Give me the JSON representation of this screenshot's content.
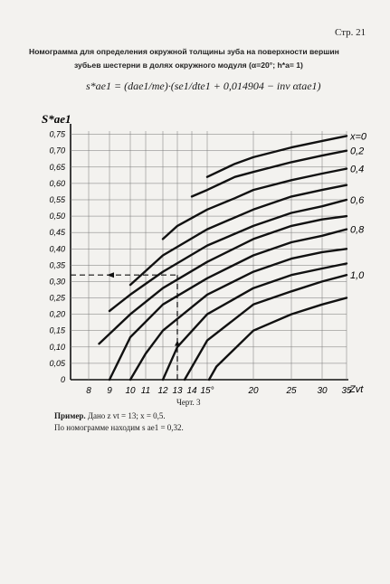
{
  "header": {
    "page_number": "Стр. 21"
  },
  "title": {
    "line1": "Номограмма для определения окружной толщины зуба на поверхности вершин",
    "line2": "зубьев шестерни в долях окружного модуля (α=20°; h*a= 1)"
  },
  "formula": "s*ae1 = (dae1/me)·(se1/dte1 + 0,014904 − inv αtae1)",
  "chart_data": {
    "type": "line",
    "title": "",
    "ylabel": "S*ae1",
    "xlabel": "Zvt",
    "x_ticks": [
      8,
      9,
      10,
      11,
      12,
      13,
      14,
      15,
      20,
      25,
      30,
      35
    ],
    "x_tick_labels": [
      "8",
      "9",
      "10",
      "11",
      "12",
      "13",
      "14",
      "15°",
      "20",
      "25",
      "30",
      "35"
    ],
    "y_ticks": [
      0,
      0.05,
      0.1,
      0.15,
      0.2,
      0.25,
      0.3,
      0.35,
      0.4,
      0.45,
      0.5,
      0.55,
      0.6,
      0.65,
      0.7,
      0.75
    ],
    "y_tick_labels": [
      "0",
      "0,05",
      "0,10",
      "0,15",
      "0,20",
      "0,25",
      "0,30",
      "0,35",
      "0,40",
      "0,45",
      "0,50",
      "0,55",
      "0,60",
      "0,65",
      "0,70",
      "0,75"
    ],
    "xlim": [
      7.5,
      36
    ],
    "ylim": [
      0,
      0.76
    ],
    "axis": "reciprocal",
    "grid": true,
    "series": [
      {
        "name": "x=0",
        "points": [
          [
            15,
            0.62
          ],
          [
            18,
            0.66
          ],
          [
            20,
            0.68
          ],
          [
            25,
            0.71
          ],
          [
            30,
            0.73
          ],
          [
            35,
            0.745
          ]
        ]
      },
      {
        "name": "0,2",
        "points": [
          [
            14,
            0.56
          ],
          [
            15,
            0.58
          ],
          [
            18,
            0.62
          ],
          [
            20,
            0.635
          ],
          [
            25,
            0.665
          ],
          [
            30,
            0.685
          ],
          [
            35,
            0.7
          ]
        ]
      },
      {
        "name": "0,4",
        "points": [
          [
            12,
            0.43
          ],
          [
            13,
            0.47
          ],
          [
            15,
            0.52
          ],
          [
            18,
            0.555
          ],
          [
            20,
            0.58
          ],
          [
            25,
            0.61
          ],
          [
            30,
            0.63
          ],
          [
            35,
            0.645
          ]
        ]
      },
      {
        "name": "",
        "points": [
          [
            10,
            0.29
          ],
          [
            12,
            0.38
          ],
          [
            15,
            0.46
          ],
          [
            20,
            0.52
          ],
          [
            25,
            0.56
          ],
          [
            30,
            0.58
          ],
          [
            35,
            0.595
          ]
        ]
      },
      {
        "name": "0,6",
        "points": [
          [
            9,
            0.21
          ],
          [
            10,
            0.26
          ],
          [
            12,
            0.33
          ],
          [
            15,
            0.41
          ],
          [
            20,
            0.47
          ],
          [
            25,
            0.51
          ],
          [
            30,
            0.53
          ],
          [
            35,
            0.55
          ]
        ]
      },
      {
        "name": "",
        "points": [
          [
            8.5,
            0.11
          ],
          [
            10,
            0.2
          ],
          [
            12,
            0.28
          ],
          [
            15,
            0.36
          ],
          [
            20,
            0.43
          ],
          [
            25,
            0.47
          ],
          [
            30,
            0.49
          ],
          [
            35,
            0.5
          ]
        ]
      },
      {
        "name": "0,8",
        "points": [
          [
            9,
            0.0
          ],
          [
            10,
            0.13
          ],
          [
            12,
            0.23
          ],
          [
            15,
            0.31
          ],
          [
            20,
            0.38
          ],
          [
            25,
            0.42
          ],
          [
            30,
            0.44
          ],
          [
            35,
            0.46
          ]
        ]
      },
      {
        "name": "",
        "points": [
          [
            10,
            0.0
          ],
          [
            11,
            0.08
          ],
          [
            12,
            0.15
          ],
          [
            15,
            0.26
          ],
          [
            20,
            0.33
          ],
          [
            25,
            0.37
          ],
          [
            30,
            0.39
          ],
          [
            35,
            0.4
          ]
        ]
      },
      {
        "name": "",
        "points": [
          [
            12,
            0.0
          ],
          [
            13,
            0.1
          ],
          [
            15,
            0.2
          ],
          [
            20,
            0.28
          ],
          [
            25,
            0.32
          ],
          [
            30,
            0.34
          ],
          [
            35,
            0.355
          ]
        ]
      },
      {
        "name": "1,0",
        "points": [
          [
            13.5,
            0.0
          ],
          [
            15,
            0.12
          ],
          [
            20,
            0.23
          ],
          [
            25,
            0.27
          ],
          [
            30,
            0.3
          ],
          [
            35,
            0.32
          ]
        ]
      },
      {
        "name": "",
        "points": [
          [
            15.2,
            0.0
          ],
          [
            16,
            0.04
          ],
          [
            20,
            0.15
          ],
          [
            25,
            0.2
          ],
          [
            30,
            0.23
          ],
          [
            35,
            0.25
          ]
        ]
      }
    ],
    "example_point": {
      "x": 13,
      "y": 0.32
    }
  },
  "caption": "Черт. 3",
  "example": {
    "label": "Пример.",
    "given": "Дано z vt = 13; x = 0,5.",
    "result": "По номограмме находим s ae1 = 0,32."
  }
}
